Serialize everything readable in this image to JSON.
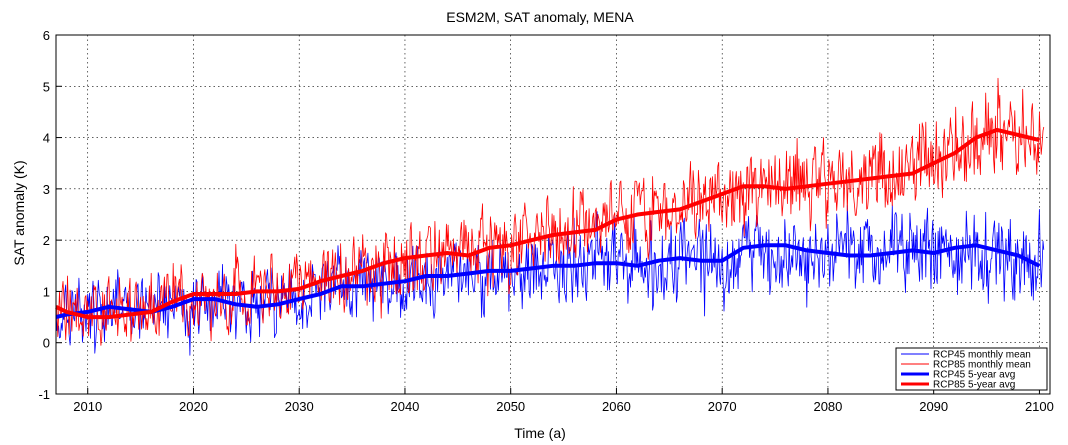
{
  "chart_data": {
    "type": "line",
    "title": "ESM2M, SAT anomaly, MENA",
    "xlabel": "Time (a)",
    "ylabel": "SAT anomaly (K)",
    "xlim": [
      2007,
      2101
    ],
    "ylim": [
      -1,
      6
    ],
    "xticks": [
      2010,
      2020,
      2030,
      2040,
      2050,
      2060,
      2070,
      2080,
      2090,
      2100
    ],
    "yticks": [
      -1,
      0,
      1,
      2,
      3,
      4,
      5,
      6
    ],
    "grid": true,
    "legend_position": "bottom-right",
    "series": [
      {
        "name": "RCP45 monthly mean",
        "color": "#0000ff",
        "style": "thin",
        "description": "monthly values, noisy around the 5-year mean",
        "x": [
          2007,
          2015,
          2025,
          2035,
          2045,
          2055,
          2065,
          2075,
          2085,
          2095,
          2100.5
        ],
        "y": [
          0.6,
          0.65,
          0.8,
          1.05,
          1.3,
          1.45,
          1.6,
          1.85,
          1.75,
          1.8,
          1.45
        ]
      },
      {
        "name": "RCP85 monthly mean",
        "color": "#ff0000",
        "style": "thin",
        "x": [
          2007,
          2015,
          2025,
          2035,
          2045,
          2055,
          2065,
          2075,
          2085,
          2095,
          2100.5
        ],
        "y": [
          0.7,
          0.7,
          0.95,
          1.35,
          1.75,
          2.2,
          2.7,
          3.0,
          3.25,
          4.05,
          3.95
        ]
      },
      {
        "name": "RCP45 5-year avg",
        "color": "#0000ff",
        "style": "thick",
        "x": [
          2007,
          2008,
          2010,
          2012,
          2014,
          2016,
          2018,
          2020,
          2022,
          2024,
          2026,
          2028,
          2030,
          2032,
          2034,
          2036,
          2038,
          2040,
          2042,
          2044,
          2046,
          2048,
          2050,
          2052,
          2054,
          2056,
          2058,
          2060,
          2062,
          2064,
          2066,
          2068,
          2070,
          2072,
          2074,
          2076,
          2078,
          2080,
          2082,
          2084,
          2086,
          2088,
          2090,
          2092,
          2094,
          2096,
          2098,
          2100
        ],
        "y": [
          0.5,
          0.55,
          0.6,
          0.7,
          0.65,
          0.6,
          0.7,
          0.85,
          0.85,
          0.75,
          0.7,
          0.75,
          0.85,
          0.95,
          1.1,
          1.1,
          1.15,
          1.2,
          1.3,
          1.3,
          1.35,
          1.4,
          1.4,
          1.45,
          1.5,
          1.5,
          1.55,
          1.55,
          1.5,
          1.6,
          1.65,
          1.6,
          1.6,
          1.85,
          1.9,
          1.9,
          1.8,
          1.75,
          1.7,
          1.7,
          1.75,
          1.8,
          1.75,
          1.85,
          1.9,
          1.8,
          1.7,
          1.5
        ]
      },
      {
        "name": "RCP85 5-year avg",
        "color": "#ff0000",
        "style": "thick",
        "x": [
          2007,
          2008,
          2010,
          2012,
          2014,
          2016,
          2018,
          2020,
          2022,
          2024,
          2026,
          2028,
          2030,
          2032,
          2034,
          2036,
          2038,
          2040,
          2042,
          2044,
          2046,
          2048,
          2050,
          2052,
          2054,
          2056,
          2058,
          2060,
          2062,
          2064,
          2066,
          2068,
          2070,
          2072,
          2074,
          2076,
          2078,
          2080,
          2082,
          2084,
          2086,
          2088,
          2090,
          2092,
          2094,
          2096,
          2098,
          2100
        ],
        "y": [
          0.7,
          0.6,
          0.5,
          0.5,
          0.55,
          0.6,
          0.8,
          0.95,
          0.95,
          0.95,
          1.0,
          1.0,
          1.05,
          1.2,
          1.3,
          1.4,
          1.55,
          1.65,
          1.7,
          1.75,
          1.7,
          1.85,
          1.9,
          2.0,
          2.1,
          2.15,
          2.2,
          2.4,
          2.5,
          2.55,
          2.6,
          2.75,
          2.9,
          3.05,
          3.05,
          3.0,
          3.05,
          3.1,
          3.15,
          3.2,
          3.25,
          3.3,
          3.5,
          3.7,
          4.0,
          4.15,
          4.05,
          3.95
        ]
      }
    ]
  }
}
